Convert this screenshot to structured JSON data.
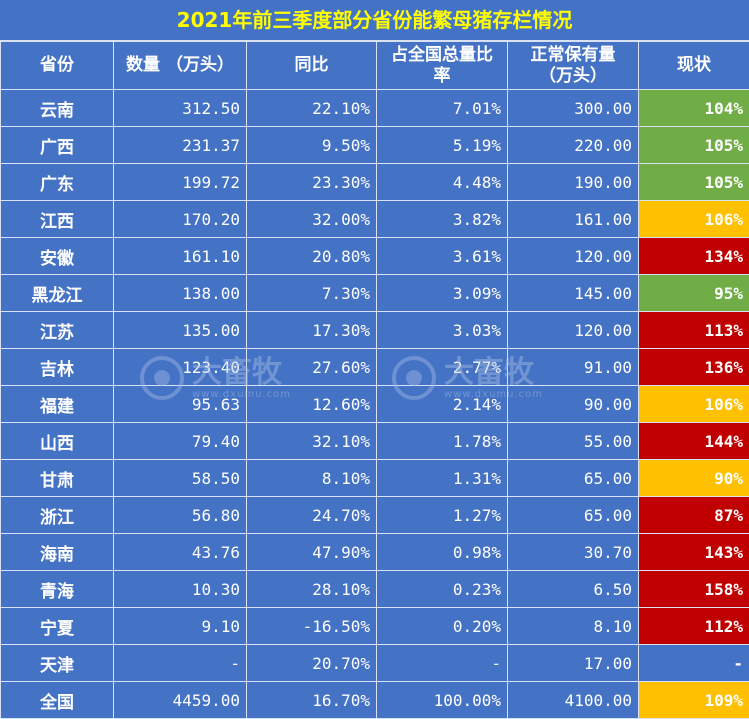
{
  "title": "2021年前三季度部分省份能繁母猪存栏情况",
  "headers": [
    "省份",
    "数量  （万头）",
    "同比",
    "占全国总量比率",
    "正常保有量（万头）",
    "现状"
  ],
  "rows": [
    {
      "province": "云南",
      "quantity": "312.50",
      "yoy": "22.10%",
      "share": "7.01%",
      "normal": "300.00",
      "status": "104%",
      "status_color": "green"
    },
    {
      "province": "广西",
      "quantity": "231.37",
      "yoy": "9.50%",
      "share": "5.19%",
      "normal": "220.00",
      "status": "105%",
      "status_color": "green"
    },
    {
      "province": "广东",
      "quantity": "199.72",
      "yoy": "23.30%",
      "share": "4.48%",
      "normal": "190.00",
      "status": "105%",
      "status_color": "green"
    },
    {
      "province": "江西",
      "quantity": "170.20",
      "yoy": "32.00%",
      "share": "3.82%",
      "normal": "161.00",
      "status": "106%",
      "status_color": "yellow"
    },
    {
      "province": "安徽",
      "quantity": "161.10",
      "yoy": "20.80%",
      "share": "3.61%",
      "normal": "120.00",
      "status": "134%",
      "status_color": "red"
    },
    {
      "province": "黑龙江",
      "quantity": "138.00",
      "yoy": "7.30%",
      "share": "3.09%",
      "normal": "145.00",
      "status": "95%",
      "status_color": "green"
    },
    {
      "province": "江苏",
      "quantity": "135.00",
      "yoy": "17.30%",
      "share": "3.03%",
      "normal": "120.00",
      "status": "113%",
      "status_color": "red"
    },
    {
      "province": "吉林",
      "quantity": "123.40",
      "yoy": "27.60%",
      "share": "2.77%",
      "normal": "91.00",
      "status": "136%",
      "status_color": "red"
    },
    {
      "province": "福建",
      "quantity": "95.63",
      "yoy": "12.60%",
      "share": "2.14%",
      "normal": "90.00",
      "status": "106%",
      "status_color": "yellow"
    },
    {
      "province": "山西",
      "quantity": "79.40",
      "yoy": "32.10%",
      "share": "1.78%",
      "normal": "55.00",
      "status": "144%",
      "status_color": "red"
    },
    {
      "province": "甘肃",
      "quantity": "58.50",
      "yoy": "8.10%",
      "share": "1.31%",
      "normal": "65.00",
      "status": "90%",
      "status_color": "yellow"
    },
    {
      "province": "浙江",
      "quantity": "56.80",
      "yoy": "24.70%",
      "share": "1.27%",
      "normal": "65.00",
      "status": "87%",
      "status_color": "red"
    },
    {
      "province": "海南",
      "quantity": "43.76",
      "yoy": "47.90%",
      "share": "0.98%",
      "normal": "30.70",
      "status": "143%",
      "status_color": "red"
    },
    {
      "province": "青海",
      "quantity": "10.30",
      "yoy": "28.10%",
      "share": "0.23%",
      "normal": "6.50",
      "status": "158%",
      "status_color": "red"
    },
    {
      "province": "宁夏",
      "quantity": "9.10",
      "yoy": "-16.50%",
      "share": "0.20%",
      "normal": "8.10",
      "status": "112%",
      "status_color": "red"
    },
    {
      "province": "天津",
      "quantity": "-",
      "yoy": "20.70%",
      "share": "-",
      "normal": "17.00",
      "status": "-",
      "status_color": "none"
    },
    {
      "province": "全国",
      "quantity": "4459.00",
      "yoy": "16.70%",
      "share": "100.00%",
      "normal": "4100.00",
      "status": "109%",
      "status_color": "yellow"
    }
  ],
  "watermark": {
    "name": "大畜牧",
    "url": "www.dxumu.com"
  },
  "colors": {
    "header_bg": "#4472c4",
    "title_text": "#ffff00",
    "green": "#70ad47",
    "yellow": "#ffc000",
    "red": "#c00000"
  }
}
